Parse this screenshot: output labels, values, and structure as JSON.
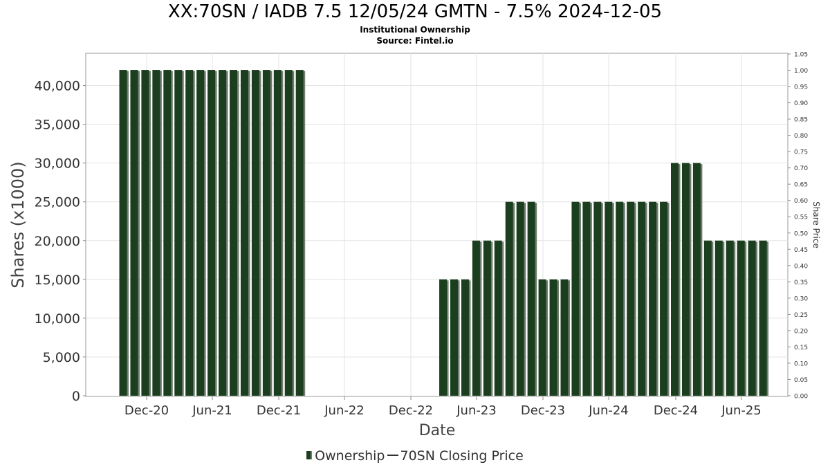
{
  "chart_data": {
    "type": "bar",
    "title": "XX:70SN / IADB 7.5 12/05/24 GMTN - 7.5% 2024-12-05",
    "subtitle": "Institutional Ownership",
    "source": "Source: Fintel.io",
    "xlabel": "Date",
    "ylabel": "Shares (x1000)",
    "y2label": "Share Price",
    "ylim": [
      0,
      44000
    ],
    "y2lim": [
      0,
      1.05
    ],
    "yticks": [
      0,
      5000,
      10000,
      15000,
      20000,
      25000,
      30000,
      35000,
      40000
    ],
    "ytick_labels": [
      "0",
      "5,000",
      "10,000",
      "15,000",
      "20,000",
      "25,000",
      "30,000",
      "35,000",
      "40,000"
    ],
    "y2tick_labels": [
      "0.00",
      "0.05",
      "0.10",
      "0.15",
      "0.20",
      "0.25",
      "0.30",
      "0.35",
      "0.40",
      "0.45",
      "0.50",
      "0.55",
      "0.60",
      "0.65",
      "0.70",
      "0.75",
      "0.80",
      "0.85",
      "0.90",
      "0.95",
      "1.00",
      "1.05"
    ],
    "xtick_labels": [
      "Dec-20",
      "Jun-21",
      "Dec-21",
      "Jun-22",
      "Dec-22",
      "Jun-23",
      "Dec-23",
      "Jun-24",
      "Dec-24",
      "Jun-25"
    ],
    "grid": true,
    "legend_position": "bottom",
    "series": [
      {
        "name": "Ownership",
        "color": "#1b3f1e",
        "shadow_color": "#6f7d6f",
        "values": [
          42000,
          42000,
          42000,
          42000,
          42000,
          42000,
          42000,
          42000,
          42000,
          42000,
          42000,
          42000,
          42000,
          42000,
          42000,
          42000,
          42000,
          0,
          0,
          0,
          0,
          0,
          0,
          0,
          0,
          0,
          0,
          0,
          0,
          15000,
          15000,
          15000,
          20000,
          20000,
          20000,
          25000,
          25000,
          25000,
          15000,
          15000,
          15000,
          25000,
          25000,
          25000,
          25000,
          25000,
          25000,
          25000,
          25000,
          25000,
          30000,
          30000,
          30000,
          20000,
          20000,
          20000,
          20000,
          20000,
          20000
        ]
      },
      {
        "name": "70SN Closing Price",
        "color": "#333333",
        "values": []
      }
    ]
  },
  "legend": {
    "ownership_label": "Ownership",
    "price_label": "70SN Closing Price"
  }
}
